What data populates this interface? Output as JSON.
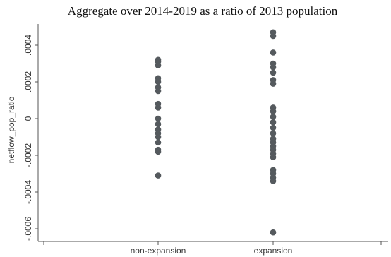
{
  "chart_data": {
    "type": "scatter",
    "title": "Aggregate over 2014-2019 as a ratio of 2013 population",
    "ylabel": "netflow_pop_ratio",
    "xlabel": "",
    "categories": [
      "non-expansion",
      "expansion"
    ],
    "y_ticks": [
      -0.0006,
      -0.0004,
      -0.0002,
      0,
      0.0002,
      0.0004
    ],
    "y_tick_labels": [
      "-.0006",
      "-.0004",
      "-.0002",
      "0",
      ".0002",
      ".0004"
    ],
    "ylim": [
      -0.00065,
      0.00047
    ],
    "grid": false,
    "marker_color": "#555a5e",
    "series": [
      {
        "category": "non-expansion",
        "values": [
          0.00032,
          0.00031,
          0.00029,
          0.00022,
          0.0002,
          0.00017,
          0.00015,
          8e-05,
          6e-05,
          0.0,
          -3e-05,
          -6e-05,
          -8e-05,
          -0.0001,
          -0.00013,
          -0.00017,
          -0.00018,
          -0.00031
        ]
      },
      {
        "category": "expansion",
        "values": [
          0.00047,
          0.00045,
          0.00036,
          0.0003,
          0.00028,
          0.00025,
          0.00021,
          0.00019,
          6e-05,
          4e-05,
          1e-05,
          -2e-05,
          -5e-05,
          -8e-05,
          -0.00011,
          -0.00013,
          -0.00015,
          -0.00017,
          -0.00019,
          -0.00021,
          -0.00028,
          -0.0003,
          -0.00032,
          -0.00034,
          -0.00062
        ]
      }
    ]
  }
}
